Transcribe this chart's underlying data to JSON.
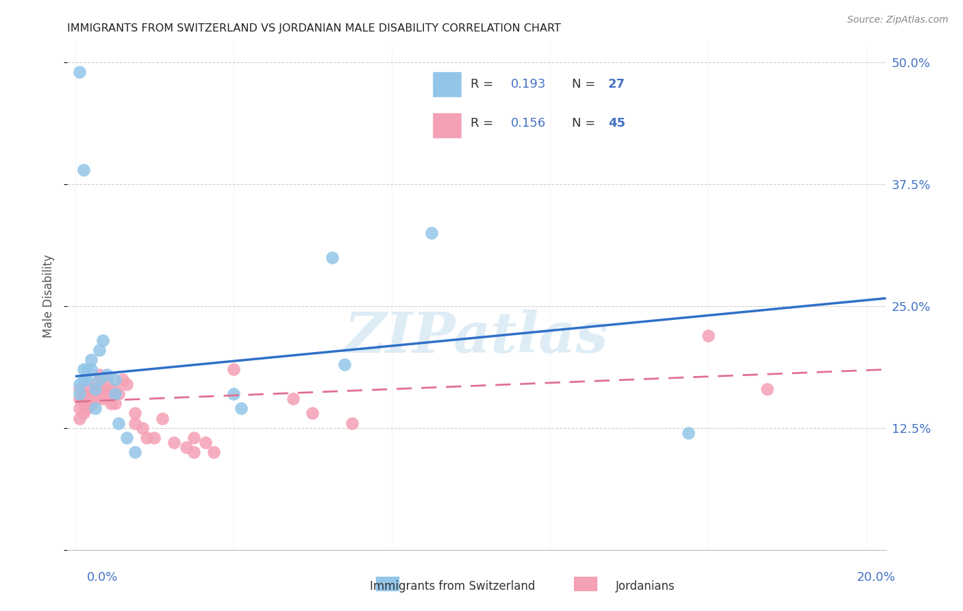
{
  "title": "IMMIGRANTS FROM SWITZERLAND VS JORDANIAN MALE DISABILITY CORRELATION CHART",
  "source": "Source: ZipAtlas.com",
  "ylabel": "Male Disability",
  "yticks": [
    0.0,
    0.125,
    0.25,
    0.375,
    0.5
  ],
  "ytick_labels": [
    "",
    "12.5%",
    "25.0%",
    "37.5%",
    "50.0%"
  ],
  "xticks": [
    0.0,
    0.04,
    0.08,
    0.12,
    0.16,
    0.2
  ],
  "xtick_labels": [
    "0.0%",
    "",
    "",
    "",
    "",
    "20.0%"
  ],
  "xlim": [
    -0.002,
    0.205
  ],
  "ylim": [
    0.055,
    0.52
  ],
  "legend_R1": "0.193",
  "legend_N1": "27",
  "legend_R2": "0.156",
  "legend_N2": "45",
  "legend_label1": "Immigrants from Switzerland",
  "legend_label2": "Jordanians",
  "color_blue": "#92C5E8",
  "color_pink": "#F4A0B5",
  "color_blue_line": "#3070C8",
  "color_pink_line": "#E07090",
  "watermark_text": "ZIPatlas",
  "swiss_x": [
    0.001,
    0.001,
    0.002,
    0.002,
    0.003,
    0.003,
    0.004,
    0.004,
    0.005,
    0.005,
    0.006,
    0.006,
    0.007,
    0.008,
    0.01,
    0.01,
    0.011,
    0.013,
    0.015,
    0.04,
    0.042,
    0.065,
    0.068,
    0.09,
    0.155,
    0.001,
    0.002
  ],
  "swiss_y": [
    0.17,
    0.16,
    0.185,
    0.175,
    0.175,
    0.185,
    0.195,
    0.185,
    0.165,
    0.145,
    0.175,
    0.205,
    0.215,
    0.18,
    0.175,
    0.16,
    0.13,
    0.115,
    0.1,
    0.16,
    0.145,
    0.3,
    0.19,
    0.325,
    0.12,
    0.49,
    0.39
  ],
  "jordan_x": [
    0.001,
    0.001,
    0.001,
    0.001,
    0.002,
    0.002,
    0.002,
    0.003,
    0.003,
    0.003,
    0.004,
    0.004,
    0.005,
    0.005,
    0.006,
    0.006,
    0.007,
    0.007,
    0.008,
    0.008,
    0.009,
    0.009,
    0.01,
    0.01,
    0.011,
    0.012,
    0.013,
    0.015,
    0.015,
    0.017,
    0.018,
    0.02,
    0.022,
    0.025,
    0.028,
    0.03,
    0.03,
    0.033,
    0.035,
    0.04,
    0.055,
    0.06,
    0.07,
    0.16,
    0.175
  ],
  "jordan_y": [
    0.165,
    0.155,
    0.145,
    0.135,
    0.16,
    0.15,
    0.14,
    0.165,
    0.155,
    0.145,
    0.16,
    0.15,
    0.17,
    0.155,
    0.18,
    0.165,
    0.165,
    0.155,
    0.175,
    0.16,
    0.165,
    0.15,
    0.165,
    0.15,
    0.16,
    0.175,
    0.17,
    0.14,
    0.13,
    0.125,
    0.115,
    0.115,
    0.135,
    0.11,
    0.105,
    0.115,
    0.1,
    0.11,
    0.1,
    0.185,
    0.155,
    0.14,
    0.13,
    0.22,
    0.165
  ],
  "swiss_trendline_x": [
    0.0,
    0.205
  ],
  "swiss_trendline_y": [
    0.178,
    0.258
  ],
  "jordan_trendline_x": [
    0.0,
    0.205
  ],
  "jordan_trendline_y": [
    0.152,
    0.185
  ],
  "jordan_trendline_dashes": [
    8,
    5
  ]
}
